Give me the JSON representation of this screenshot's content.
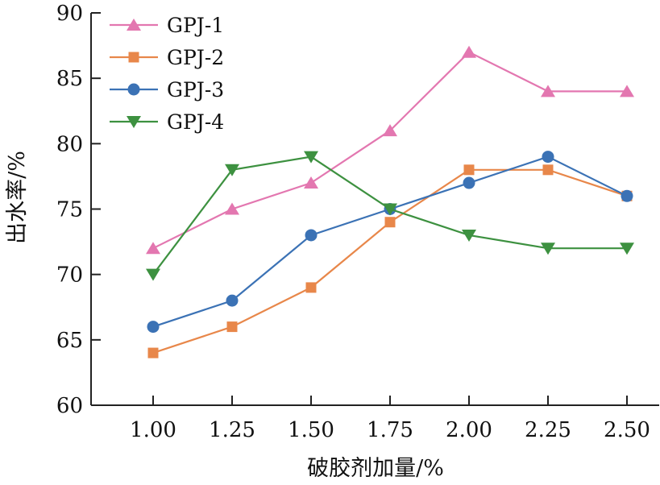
{
  "chart_data": {
    "type": "line",
    "title": "",
    "xlabel": "破胶剂加量/%",
    "ylabel": "出水率/%",
    "categories": [
      "1.00",
      "1.25",
      "1.50",
      "1.75",
      "2.00",
      "2.25",
      "2.50"
    ],
    "yticks": [
      "60",
      "65",
      "70",
      "75",
      "80",
      "85",
      "90"
    ],
    "ylim": [
      60,
      90
    ],
    "grid": false,
    "legend_position": "top-left",
    "series": [
      {
        "name": "GPJ-1",
        "color": "#e377b0",
        "marker": "triangle-up",
        "values": [
          72,
          75,
          77,
          81,
          87,
          84,
          84
        ]
      },
      {
        "name": "GPJ-2",
        "color": "#e8874a",
        "marker": "square",
        "values": [
          64,
          66,
          69,
          74,
          78,
          78,
          76
        ]
      },
      {
        "name": "GPJ-3",
        "color": "#3b72b5",
        "marker": "circle",
        "values": [
          66,
          68,
          73,
          75,
          77,
          79,
          76
        ]
      },
      {
        "name": "GPJ-4",
        "color": "#3d9140",
        "marker": "triangle-down",
        "values": [
          70,
          78,
          79,
          75,
          73,
          72,
          72
        ]
      }
    ]
  }
}
